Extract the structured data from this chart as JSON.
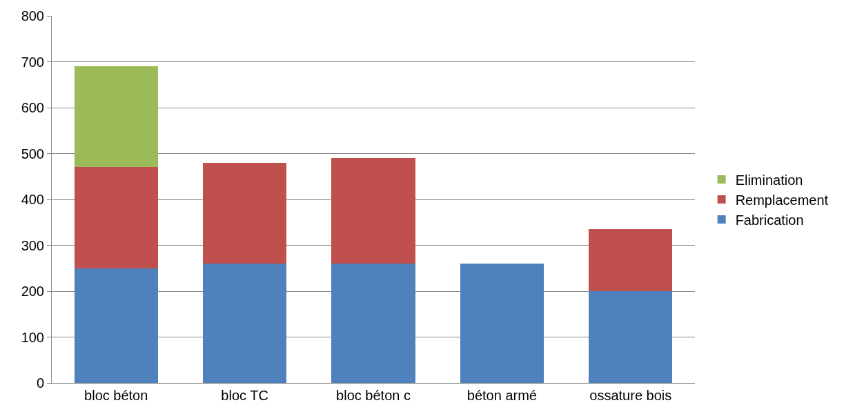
{
  "chart_data": {
    "type": "bar",
    "stacked": true,
    "categories": [
      "bloc béton",
      "bloc TC",
      "bloc béton c",
      "béton armé",
      "ossature bois"
    ],
    "series": [
      {
        "name": "Fabrication",
        "color": "#4f81bd",
        "values": [
          250,
          260,
          260,
          260,
          200
        ]
      },
      {
        "name": "Remplacement",
        "color": "#c0504d",
        "values": [
          220,
          220,
          230,
          null,
          135
        ]
      },
      {
        "name": "Elimination",
        "color": "#9bbb59",
        "values": [
          220,
          null,
          null,
          null,
          null
        ]
      }
    ],
    "ylim": [
      0,
      800
    ],
    "yticks": [
      0,
      100,
      200,
      300,
      400,
      500,
      600,
      700,
      800
    ],
    "grid": "y",
    "legend": "right"
  }
}
